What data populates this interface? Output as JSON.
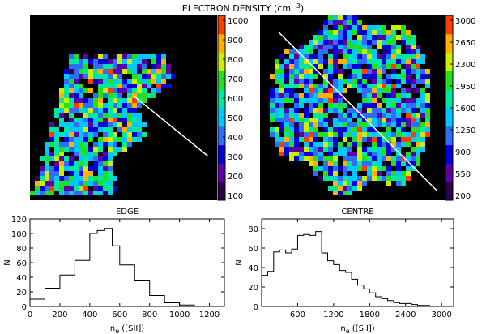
{
  "figure_title": "ELECTRON DENSITY (cm",
  "figure_title_sup": "−3",
  "chart_data": [
    {
      "type": "heatmap",
      "panel": "edge-map",
      "colorbar_ticks": [
        "1000",
        "900",
        "800",
        "700",
        "600",
        "500",
        "400",
        "300",
        "200",
        "100"
      ],
      "colorbar_range": [
        100,
        1000
      ],
      "colors": [
        "#2a004a",
        "#5c00a8",
        "#0000d8",
        "#2f6dff",
        "#00c8ff",
        "#00e8a0",
        "#22e020",
        "#c8f000",
        "#ffb000",
        "#ff3c00"
      ],
      "background": "#000000",
      "cut_line_color": "#ffffff"
    },
    {
      "type": "heatmap",
      "panel": "centre-map",
      "colorbar_ticks": [
        "3000",
        "2650",
        "2300",
        "1950",
        "1600",
        "1250",
        "900",
        "550",
        "200"
      ],
      "colorbar_range": [
        200,
        3000
      ],
      "colors": [
        "#2a004a",
        "#5c00a8",
        "#0000d8",
        "#2f6dff",
        "#00c8ff",
        "#00e8a0",
        "#22e020",
        "#c8f000",
        "#ffb000",
        "#ff3c00"
      ],
      "background": "#000000",
      "cut_line_color": "#ffffff"
    },
    {
      "type": "histogram",
      "panel": "edge-hist",
      "title": "EDGE",
      "xlabel": "n",
      "xlabel_sub": "e",
      "xlabel_tail": " ([SII])",
      "ylabel": "N",
      "xlim": [
        0,
        1300
      ],
      "ylim": [
        0,
        120
      ],
      "xticks": [
        0,
        200,
        400,
        600,
        800,
        1000,
        1200
      ],
      "yticks": [
        0,
        20,
        40,
        60,
        80,
        100,
        120
      ],
      "bin_edges": [
        0,
        100,
        200,
        300,
        400,
        450,
        500,
        550,
        600,
        700,
        800,
        900,
        1000,
        1100,
        1200
      ],
      "counts": [
        10,
        25,
        43,
        63,
        100,
        104,
        107,
        83,
        57,
        35,
        15,
        5,
        2,
        0
      ]
    },
    {
      "type": "histogram",
      "panel": "centre-hist",
      "title": "CENTRE",
      "xlabel": "n",
      "xlabel_sub": "e",
      "xlabel_tail": " ([SII])",
      "ylabel": "N",
      "xlim": [
        0,
        3200
      ],
      "ylim": [
        0,
        90
      ],
      "xticks": [
        600,
        1200,
        1800,
        2400,
        3000
      ],
      "yticks": [
        0,
        20,
        40,
        60,
        80
      ],
      "bin_edges": [
        0,
        100,
        200,
        300,
        400,
        500,
        600,
        700,
        800,
        900,
        1000,
        1100,
        1200,
        1300,
        1400,
        1500,
        1600,
        1700,
        1800,
        1900,
        2000,
        2100,
        2200,
        2300,
        2400,
        2500,
        2600,
        2700,
        2800,
        2900,
        3000
      ],
      "counts": [
        32,
        36,
        56,
        58,
        55,
        59,
        73,
        74,
        73,
        77,
        55,
        47,
        43,
        37,
        35,
        28,
        22,
        18,
        14,
        10,
        8,
        6,
        4,
        3,
        3,
        2,
        1,
        1,
        0,
        0
      ]
    }
  ]
}
